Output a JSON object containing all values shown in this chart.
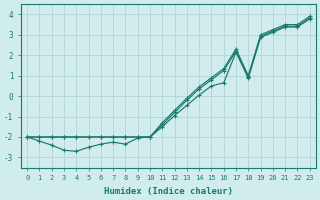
{
  "xlabel": "Humidex (Indice chaleur)",
  "xlim": [
    -0.5,
    23.5
  ],
  "ylim": [
    -3.5,
    4.5
  ],
  "xticks": [
    0,
    1,
    2,
    3,
    4,
    5,
    6,
    7,
    8,
    9,
    10,
    11,
    12,
    13,
    14,
    15,
    16,
    17,
    18,
    19,
    20,
    21,
    22,
    23
  ],
  "yticks": [
    -3,
    -2,
    -1,
    0,
    1,
    2,
    3,
    4
  ],
  "line_color": "#1a7a6e",
  "bg_color": "#d0ecec",
  "grid_color": "#b8d8d8",
  "line1_x": [
    0,
    1,
    2,
    3,
    4,
    5,
    6,
    7,
    8,
    9,
    10,
    11,
    12,
    13,
    14,
    15,
    16,
    17,
    18,
    19,
    20,
    21,
    22,
    23
  ],
  "line1_y": [
    -2.0,
    -2.0,
    -2.0,
    -2.0,
    -2.0,
    -2.0,
    -2.0,
    -2.0,
    -2.0,
    -2.0,
    -2.0,
    -1.3,
    -0.7,
    -0.1,
    0.45,
    0.9,
    1.35,
    2.3,
    1.0,
    3.0,
    3.25,
    3.5,
    3.5,
    3.9
  ],
  "line2_x": [
    0,
    1,
    2,
    3,
    4,
    5,
    6,
    7,
    8,
    9,
    10,
    11,
    12,
    13,
    14,
    15,
    16,
    17,
    18,
    19,
    20,
    21,
    22,
    23
  ],
  "line2_y": [
    -2.0,
    -2.0,
    -2.0,
    -2.0,
    -2.0,
    -2.0,
    -2.0,
    -2.0,
    -2.0,
    -2.0,
    -2.0,
    -1.4,
    -0.8,
    -0.2,
    0.35,
    0.8,
    1.25,
    2.2,
    0.92,
    2.92,
    3.18,
    3.42,
    3.42,
    3.82
  ],
  "line3_x": [
    0,
    1,
    2,
    3,
    4,
    5,
    6,
    7,
    8,
    9,
    10,
    11,
    12,
    13,
    14,
    15,
    16,
    17,
    18,
    19,
    20,
    21,
    22,
    23
  ],
  "line3_y": [
    -2.0,
    -2.2,
    -2.4,
    -2.65,
    -2.7,
    -2.5,
    -2.35,
    -2.25,
    -2.35,
    -2.05,
    -2.0,
    -1.5,
    -0.95,
    -0.45,
    0.05,
    0.5,
    0.65,
    2.15,
    0.88,
    2.88,
    3.12,
    3.38,
    3.38,
    3.78
  ]
}
